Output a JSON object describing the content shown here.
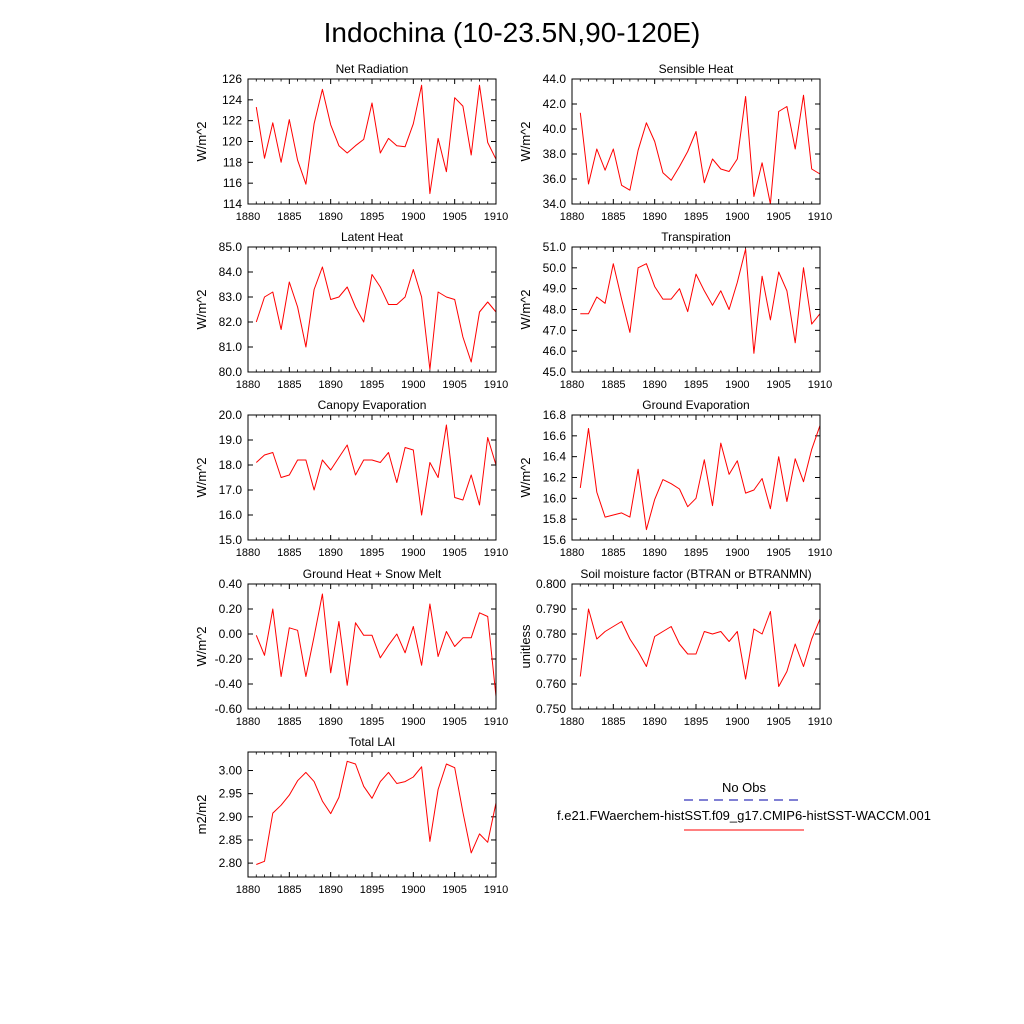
{
  "title": "Indochina (10-23.5N,90-120E)",
  "legend": {
    "obs_label": "No Obs",
    "model_label": "f.e21.FWaerchem-histSST.f09_g17.CMIP6-histSST-WACCM.001",
    "obs_color": "#0000aa",
    "model_color": "#ff0000"
  },
  "chart_data": [
    {
      "type": "line",
      "title": "Net Radiation",
      "ylabel": "W/m^2",
      "xlim": [
        1880,
        1910
      ],
      "ylim": [
        114,
        126
      ],
      "xticks": [
        1880,
        1885,
        1890,
        1895,
        1900,
        1905,
        1910
      ],
      "yticks": [
        "114",
        "116",
        "118",
        "120",
        "122",
        "124",
        "126"
      ],
      "x": [
        1881,
        1882,
        1883,
        1884,
        1885,
        1886,
        1887,
        1888,
        1889,
        1890,
        1891,
        1892,
        1893,
        1894,
        1895,
        1896,
        1897,
        1898,
        1899,
        1900,
        1901,
        1902,
        1903,
        1904,
        1905,
        1906,
        1907,
        1908,
        1909,
        1910
      ],
      "series": [
        {
          "values": [
            123.3,
            118.4,
            121.8,
            118.0,
            122.1,
            118.2,
            115.9,
            121.7,
            125.0,
            121.6,
            119.6,
            118.9,
            119.6,
            120.2,
            123.7,
            118.9,
            120.3,
            119.6,
            119.5,
            121.7,
            125.4,
            115.0,
            120.3,
            117.1,
            124.2,
            123.4,
            118.7,
            125.4,
            119.9,
            118.3
          ],
          "color": "#ff0000"
        }
      ]
    },
    {
      "type": "line",
      "title": "Sensible Heat",
      "ylabel": "W/m^2",
      "xlim": [
        1880,
        1910
      ],
      "ylim": [
        34,
        44
      ],
      "xticks": [
        1880,
        1885,
        1890,
        1895,
        1900,
        1905,
        1910
      ],
      "yticks": [
        "34.0",
        "36.0",
        "38.0",
        "40.0",
        "42.0",
        "44.0"
      ],
      "x": [
        1881,
        1882,
        1883,
        1884,
        1885,
        1886,
        1887,
        1888,
        1889,
        1890,
        1891,
        1892,
        1893,
        1894,
        1895,
        1896,
        1897,
        1898,
        1899,
        1900,
        1901,
        1902,
        1903,
        1904,
        1905,
        1906,
        1907,
        1908,
        1909,
        1910
      ],
      "series": [
        {
          "values": [
            41.3,
            35.6,
            38.4,
            36.7,
            38.4,
            35.5,
            35.1,
            38.3,
            40.5,
            39.0,
            36.5,
            35.9,
            37.0,
            38.2,
            39.8,
            35.7,
            37.6,
            36.8,
            36.6,
            37.6,
            42.6,
            34.6,
            37.3,
            34.0,
            41.4,
            41.8,
            38.4,
            42.7,
            36.8,
            36.4
          ],
          "color": "#ff0000"
        }
      ]
    },
    {
      "type": "line",
      "title": "Latent Heat",
      "ylabel": "W/m^2",
      "xlim": [
        1880,
        1910
      ],
      "ylim": [
        80,
        85
      ],
      "xticks": [
        1880,
        1885,
        1890,
        1895,
        1900,
        1905,
        1910
      ],
      "yticks": [
        "80.0",
        "81.0",
        "82.0",
        "83.0",
        "84.0",
        "85.0"
      ],
      "x": [
        1881,
        1882,
        1883,
        1884,
        1885,
        1886,
        1887,
        1888,
        1889,
        1890,
        1891,
        1892,
        1893,
        1894,
        1895,
        1896,
        1897,
        1898,
        1899,
        1900,
        1901,
        1902,
        1903,
        1904,
        1905,
        1906,
        1907,
        1908,
        1909,
        1910
      ],
      "series": [
        {
          "values": [
            82.0,
            83.0,
            83.2,
            81.7,
            83.6,
            82.6,
            81.0,
            83.3,
            84.2,
            82.9,
            83.0,
            83.4,
            82.6,
            82.0,
            83.9,
            83.4,
            82.7,
            82.7,
            83.0,
            84.1,
            83.0,
            80.1,
            83.2,
            83.0,
            82.9,
            81.4,
            80.4,
            82.4,
            82.8,
            82.4
          ],
          "color": "#ff0000"
        }
      ]
    },
    {
      "type": "line",
      "title": "Transpiration",
      "ylabel": "W/m^2",
      "xlim": [
        1880,
        1910
      ],
      "ylim": [
        45,
        51
      ],
      "xticks": [
        1880,
        1885,
        1890,
        1895,
        1900,
        1905,
        1910
      ],
      "yticks": [
        "45.0",
        "46.0",
        "47.0",
        "48.0",
        "49.0",
        "50.0",
        "51.0"
      ],
      "x": [
        1881,
        1882,
        1883,
        1884,
        1885,
        1886,
        1887,
        1888,
        1889,
        1890,
        1891,
        1892,
        1893,
        1894,
        1895,
        1896,
        1897,
        1898,
        1899,
        1900,
        1901,
        1902,
        1903,
        1904,
        1905,
        1906,
        1907,
        1908,
        1909,
        1910
      ],
      "series": [
        {
          "values": [
            47.8,
            47.8,
            48.6,
            48.3,
            50.2,
            48.5,
            46.9,
            50.0,
            50.2,
            49.1,
            48.5,
            48.5,
            49.0,
            47.9,
            49.7,
            48.9,
            48.2,
            48.9,
            48.0,
            49.3,
            50.9,
            45.9,
            49.6,
            47.5,
            49.8,
            48.9,
            46.4,
            50.0,
            47.3,
            47.8
          ],
          "color": "#ff0000"
        }
      ]
    },
    {
      "type": "line",
      "title": "Canopy Evaporation",
      "ylabel": "W/m^2",
      "xlim": [
        1880,
        1910
      ],
      "ylim": [
        15,
        20
      ],
      "xticks": [
        1880,
        1885,
        1890,
        1895,
        1900,
        1905,
        1910
      ],
      "yticks": [
        "15.0",
        "16.0",
        "17.0",
        "18.0",
        "19.0",
        "20.0"
      ],
      "x": [
        1881,
        1882,
        1883,
        1884,
        1885,
        1886,
        1887,
        1888,
        1889,
        1890,
        1891,
        1892,
        1893,
        1894,
        1895,
        1896,
        1897,
        1898,
        1899,
        1900,
        1901,
        1902,
        1903,
        1904,
        1905,
        1906,
        1907,
        1908,
        1909,
        1910
      ],
      "series": [
        {
          "values": [
            18.1,
            18.4,
            18.5,
            17.5,
            17.6,
            18.2,
            18.2,
            17.0,
            18.2,
            17.8,
            18.3,
            18.8,
            17.6,
            18.2,
            18.2,
            18.1,
            18.5,
            17.3,
            18.7,
            18.6,
            16.0,
            18.1,
            17.5,
            19.6,
            16.7,
            16.6,
            17.6,
            16.4,
            19.1,
            18.0
          ],
          "color": "#ff0000"
        }
      ]
    },
    {
      "type": "line",
      "title": "Ground Evaporation",
      "ylabel": "W/m^2",
      "xlim": [
        1880,
        1910
      ],
      "ylim": [
        15.6,
        16.8
      ],
      "xticks": [
        1880,
        1885,
        1890,
        1895,
        1900,
        1905,
        1910
      ],
      "yticks": [
        "15.6",
        "15.8",
        "16.0",
        "16.2",
        "16.4",
        "16.6",
        "16.8"
      ],
      "x": [
        1881,
        1882,
        1883,
        1884,
        1885,
        1886,
        1887,
        1888,
        1889,
        1890,
        1891,
        1892,
        1893,
        1894,
        1895,
        1896,
        1897,
        1898,
        1899,
        1900,
        1901,
        1902,
        1903,
        1904,
        1905,
        1906,
        1907,
        1908,
        1909,
        1910
      ],
      "series": [
        {
          "values": [
            16.1,
            16.67,
            16.06,
            15.82,
            15.84,
            15.86,
            15.82,
            16.28,
            15.7,
            15.99,
            16.18,
            16.14,
            16.09,
            15.92,
            16.0,
            16.37,
            15.93,
            16.53,
            16.23,
            16.36,
            16.05,
            16.08,
            16.19,
            15.9,
            16.4,
            15.97,
            16.38,
            16.16,
            16.47,
            16.7
          ],
          "color": "#ff0000"
        }
      ]
    },
    {
      "type": "line",
      "title": "Ground Heat + Snow Melt",
      "ylabel": "W/m^2",
      "xlim": [
        1880,
        1910
      ],
      "ylim": [
        -0.6,
        0.4
      ],
      "xticks": [
        1880,
        1885,
        1890,
        1895,
        1900,
        1905,
        1910
      ],
      "yticks": [
        "-0.60",
        "-0.40",
        "-0.20",
        "0.00",
        "0.20",
        "0.40"
      ],
      "x": [
        1881,
        1882,
        1883,
        1884,
        1885,
        1886,
        1887,
        1888,
        1889,
        1890,
        1891,
        1892,
        1893,
        1894,
        1895,
        1896,
        1897,
        1898,
        1899,
        1900,
        1901,
        1902,
        1903,
        1904,
        1905,
        1906,
        1907,
        1908,
        1909,
        1910
      ],
      "series": [
        {
          "values": [
            -0.01,
            -0.17,
            0.2,
            -0.34,
            0.05,
            0.03,
            -0.34,
            -0.02,
            0.32,
            -0.31,
            0.1,
            -0.41,
            0.09,
            -0.01,
            -0.01,
            -0.19,
            -0.09,
            0.0,
            -0.15,
            0.06,
            -0.25,
            0.24,
            -0.18,
            0.02,
            -0.1,
            -0.03,
            -0.03,
            0.17,
            0.14,
            -0.5
          ],
          "color": "#ff0000"
        }
      ]
    },
    {
      "type": "line",
      "title": "Soil moisture factor (BTRAN or BTRANMN)",
      "ylabel": "unitless",
      "xlim": [
        1880,
        1910
      ],
      "ylim": [
        0.75,
        0.8
      ],
      "xticks": [
        1880,
        1885,
        1890,
        1895,
        1900,
        1905,
        1910
      ],
      "yticks": [
        "0.750",
        "0.760",
        "0.770",
        "0.780",
        "0.790",
        "0.800"
      ],
      "x": [
        1881,
        1882,
        1883,
        1884,
        1885,
        1886,
        1887,
        1888,
        1889,
        1890,
        1891,
        1892,
        1893,
        1894,
        1895,
        1896,
        1897,
        1898,
        1899,
        1900,
        1901,
        1902,
        1903,
        1904,
        1905,
        1906,
        1907,
        1908,
        1909,
        1910
      ],
      "series": [
        {
          "values": [
            0.763,
            0.79,
            0.778,
            0.781,
            0.783,
            0.785,
            0.778,
            0.773,
            0.767,
            0.779,
            0.781,
            0.783,
            0.776,
            0.772,
            0.772,
            0.781,
            0.78,
            0.781,
            0.777,
            0.781,
            0.762,
            0.782,
            0.78,
            0.789,
            0.759,
            0.765,
            0.776,
            0.767,
            0.778,
            0.786
          ],
          "color": "#ff0000"
        }
      ]
    },
    {
      "type": "line",
      "title": "Total LAI",
      "ylabel": "m2/m2",
      "xlim": [
        1880,
        1910
      ],
      "ylim": [
        2.77,
        3.04
      ],
      "xticks": [
        1880,
        1885,
        1890,
        1895,
        1900,
        1905,
        1910
      ],
      "yticks": [
        "2.80",
        "2.85",
        "2.90",
        "2.95",
        "3.00"
      ],
      "x": [
        1881,
        1882,
        1883,
        1884,
        1885,
        1886,
        1887,
        1888,
        1889,
        1890,
        1891,
        1892,
        1893,
        1894,
        1895,
        1896,
        1897,
        1898,
        1899,
        1900,
        1901,
        1902,
        1903,
        1904,
        1905,
        1906,
        1907,
        1908,
        1909,
        1910
      ],
      "series": [
        {
          "values": [
            2.797,
            2.804,
            2.908,
            2.925,
            2.947,
            2.978,
            2.996,
            2.976,
            2.934,
            2.907,
            2.942,
            3.02,
            3.014,
            2.966,
            2.94,
            2.976,
            2.996,
            2.972,
            2.976,
            2.986,
            3.008,
            2.847,
            2.959,
            3.014,
            3.006,
            2.91,
            2.822,
            2.863,
            2.845,
            2.93
          ],
          "color": "#ff0000"
        }
      ]
    }
  ]
}
